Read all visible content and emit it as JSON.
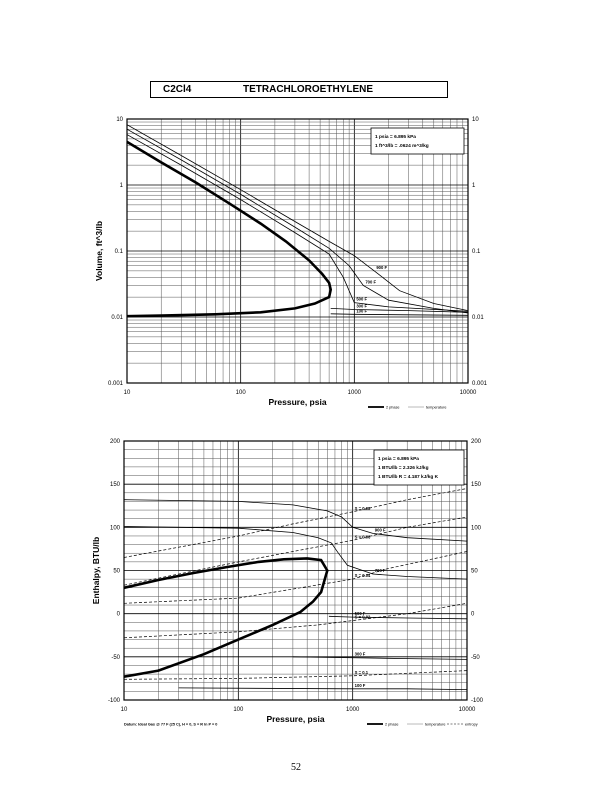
{
  "header": {
    "formula": "C2Cl4",
    "name": "TETRACHLOROETHYLENE"
  },
  "page_number": "52",
  "chart_data": [
    {
      "type": "line",
      "xlabel": "Pressure, psia",
      "ylabel": "Volume, ft^3/lb",
      "xscale": "log",
      "yscale": "log",
      "xlim": [
        10,
        10000
      ],
      "ylim": [
        0.001,
        10
      ],
      "x_ticks": [
        "10",
        "100",
        "1000",
        "10000"
      ],
      "y_ticks": [
        "0.001",
        "0.01",
        "0.1",
        "1",
        "10"
      ],
      "info_box": [
        "1 psia = 6.895 kPa",
        "1 ft^3/lb = .0624 m^3/kg"
      ],
      "legend": [
        {
          "label": "2 phase",
          "style": "thick"
        },
        {
          "label": "temperature",
          "style": "thin"
        }
      ],
      "series": [
        {
          "name": "2 phase",
          "style": "thick",
          "x": [
            10,
            20,
            40,
            80,
            150,
            250,
            400,
            520,
            600,
            620,
            600,
            450,
            300,
            150,
            60,
            20,
            10
          ],
          "y": [
            4.5,
            2.2,
            1.1,
            0.52,
            0.26,
            0.14,
            0.072,
            0.045,
            0.033,
            0.026,
            0.02,
            0.016,
            0.0135,
            0.0118,
            0.011,
            0.0105,
            0.0103
          ]
        },
        {
          "name": "900 F",
          "label": "900 F",
          "style": "thin",
          "x": [
            10,
            30,
            100,
            300,
            600,
            1000,
            1500,
            2500,
            5000,
            10000
          ],
          "y": [
            8.2,
            2.8,
            0.85,
            0.28,
            0.14,
            0.085,
            0.05,
            0.025,
            0.016,
            0.0125
          ]
        },
        {
          "name": "700 F",
          "label": "700 F",
          "style": "thin",
          "x": [
            10,
            30,
            100,
            300,
            600,
            900,
            1200,
            2000,
            5000,
            10000
          ],
          "y": [
            7.0,
            2.4,
            0.72,
            0.23,
            0.11,
            0.06,
            0.03,
            0.018,
            0.0135,
            0.0115
          ]
        },
        {
          "name": "500 F",
          "label": "500 F",
          "style": "thin",
          "x": [
            10,
            30,
            100,
            300,
            600,
            800,
            1000,
            2000,
            10000
          ],
          "y": [
            5.8,
            2.0,
            0.6,
            0.19,
            0.09,
            0.04,
            0.0165,
            0.0142,
            0.0122
          ]
        },
        {
          "name": "300 F",
          "label": "300 F",
          "style": "thin",
          "x": [
            620,
            1000,
            3000,
            10000
          ],
          "y": [
            0.0135,
            0.013,
            0.0125,
            0.0118
          ]
        },
        {
          "name": "100 F",
          "label": "100 F",
          "style": "thin",
          "x": [
            620,
            1000,
            3000,
            10000
          ],
          "y": [
            0.0112,
            0.011,
            0.0108,
            0.0106
          ]
        }
      ]
    },
    {
      "type": "line",
      "xlabel": "Pressure, psia",
      "ylabel": "Enthalpy, BTU/lb",
      "xscale": "log",
      "yscale": "linear",
      "xlim": [
        10,
        10000
      ],
      "ylim": [
        -100,
        200
      ],
      "x_ticks": [
        "10",
        "100",
        "1000",
        "10000"
      ],
      "y_ticks": [
        "-100",
        "-50",
        "0",
        "50",
        "100",
        "150",
        "200"
      ],
      "info_box": [
        "1 psia = 6.895 kPa",
        "1 BTU/lb = 2.326 kJ/kg",
        "1 BTU/lb R = 4.187 kJ/kg K"
      ],
      "footnote": "Datum: Ideal Gas @ 77 F (25 C), H = 0, S = R ln P = 0",
      "legend": [
        {
          "label": "2 phase",
          "style": "thick"
        },
        {
          "label": "temperature",
          "style": "thin"
        },
        {
          "label": "entropy",
          "style": "dashed"
        }
      ],
      "series": [
        {
          "name": "2 phase",
          "style": "thick",
          "x": [
            10,
            20,
            40,
            80,
            150,
            250,
            400,
            530,
            600,
            530,
            450,
            350,
            200,
            100,
            50,
            20,
            10
          ],
          "y": [
            30,
            39,
            47,
            54,
            60,
            63,
            64,
            62,
            50,
            25,
            14,
            2,
            -13,
            -30,
            -47,
            -66,
            -73
          ]
        },
        {
          "name": "900 F",
          "label": "900 F",
          "style": "thin",
          "x": [
            10,
            100,
            300,
            600,
            800,
            1000,
            1500,
            3000,
            10000
          ],
          "y": [
            132,
            130,
            126,
            119,
            112,
            100,
            93,
            88,
            84
          ]
        },
        {
          "name": "700 F",
          "label": "700 F",
          "style": "thin",
          "x": [
            10,
            100,
            300,
            500,
            650,
            750,
            900,
            1500,
            3000,
            10000
          ],
          "y": [
            101,
            99,
            94,
            88,
            82,
            70,
            56,
            46,
            43,
            40
          ]
        },
        {
          "name": "500 F",
          "label": "500 F",
          "style": "thin",
          "x": [
            620,
            1000,
            3000,
            10000
          ],
          "y": [
            -3,
            -4,
            -5,
            -6
          ]
        },
        {
          "name": "300 F",
          "label": "300 F",
          "style": "thin",
          "x": [
            300,
            1000,
            3000,
            10000
          ],
          "y": [
            -50,
            -51,
            -52,
            -53
          ]
        },
        {
          "name": "100 F",
          "label": "100 F",
          "style": "thin",
          "x": [
            30,
            1000,
            3000,
            10000
          ],
          "y": [
            -86,
            -87,
            -87,
            -88
          ]
        },
        {
          "name": "S = 0.08",
          "label": "S = 0.08",
          "style": "dashed",
          "x": [
            10,
            100,
            300,
            1000,
            3000,
            10000
          ],
          "y": [
            65,
            90,
            104,
            118,
            132,
            145
          ]
        },
        {
          "name": "S = 0.06",
          "label": "S = 0.06",
          "style": "dashed",
          "x": [
            10,
            100,
            300,
            1000,
            3000,
            10000
          ],
          "y": [
            33,
            60,
            72,
            85,
            100,
            112
          ]
        },
        {
          "name": "S = 0.04",
          "label": "S = 0.04",
          "style": "dashed",
          "x": [
            10,
            100,
            1000,
            2000,
            10000
          ],
          "y": [
            12,
            18,
            40,
            52,
            72
          ]
        },
        {
          "name": "S = 0.02",
          "label": "S = 0.02",
          "style": "dashed",
          "x": [
            10,
            100,
            500,
            1000,
            3000,
            10000
          ],
          "y": [
            -28,
            -21,
            -13,
            -8,
            0,
            12
          ]
        },
        {
          "name": "S = 0.1",
          "label": "S = 0.1",
          "style": "dashed",
          "x": [
            10,
            100,
            1000,
            10000
          ],
          "y": [
            -76,
            -75,
            -72,
            -66
          ]
        }
      ]
    }
  ]
}
